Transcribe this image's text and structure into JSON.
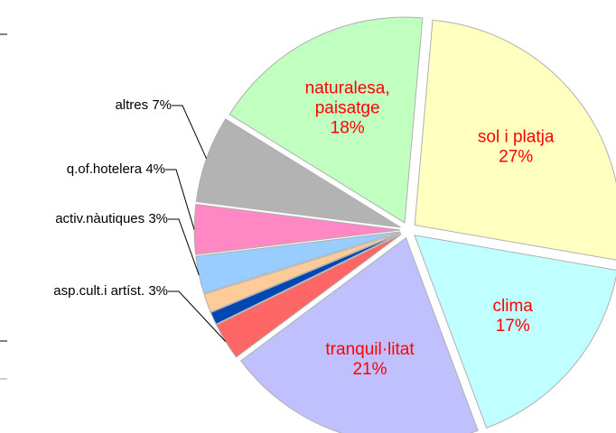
{
  "chart_data": {
    "type": "pie",
    "categories": [
      "sol i platja",
      "clima",
      "tranquil·litat",
      "asp.cult.i artíst.",
      null,
      null,
      "activ.nàutiques",
      "q.of.hotelera",
      "altres",
      "naturalesa, paisatge"
    ],
    "values": [
      27,
      17,
      21,
      3,
      1,
      1.5,
      3,
      4,
      7,
      18
    ],
    "value_labels": [
      "27%",
      "17%",
      "21%",
      "3%",
      null,
      null,
      "3%",
      "4%",
      "7%",
      "18%"
    ],
    "colors": [
      "#ffffc0",
      "#c0ffff",
      "#c0c0ff",
      "#ff6666",
      "#0047b3",
      "#ffcc99",
      "#99ccff",
      "#ff88c4",
      "#b3b3b3",
      "#c0ffc0"
    ]
  }
}
